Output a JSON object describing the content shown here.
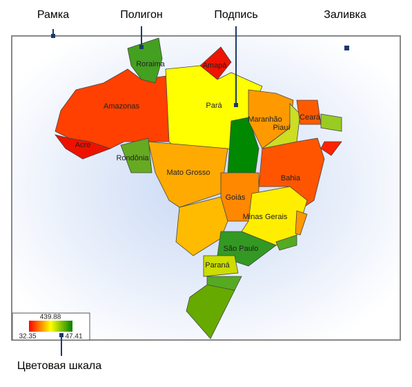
{
  "callouts": {
    "frame": "Рамка",
    "polygon": "Полигон",
    "label": "Подпись",
    "fill": "Заливка",
    "color_scale": "Цветовая шкала"
  },
  "regions": [
    {
      "name": "Amazonas"
    },
    {
      "name": "Acre"
    },
    {
      "name": "Roraima"
    },
    {
      "name": "Amapá"
    },
    {
      "name": "Pará"
    },
    {
      "name": "Rondônia"
    },
    {
      "name": "Mato Grosso"
    },
    {
      "name": "Maranhão"
    },
    {
      "name": "Piauí"
    },
    {
      "name": "Ceará"
    },
    {
      "name": "Bahia"
    },
    {
      "name": "Goiás"
    },
    {
      "name": "Minas Gerais"
    },
    {
      "name": "São Paulo"
    },
    {
      "name": "Paraná"
    }
  ],
  "scale": {
    "top": "439.88",
    "min": "32.35",
    "max": "47.41"
  }
}
